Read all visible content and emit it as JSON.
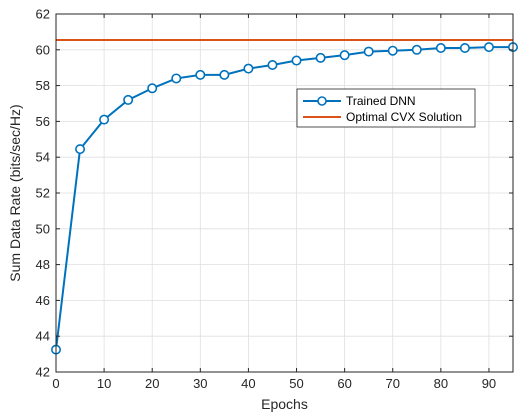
{
  "chart_data": {
    "type": "line",
    "title": "",
    "xlabel": "Epochs",
    "ylabel": "Sum Data Rate (bits/sec/Hz)",
    "xlim": [
      0,
      95
    ],
    "ylim": [
      42,
      62
    ],
    "xticks": [
      0,
      10,
      20,
      30,
      40,
      50,
      60,
      70,
      80,
      90
    ],
    "yticks": [
      42,
      44,
      46,
      48,
      50,
      52,
      54,
      56,
      58,
      60,
      62
    ],
    "grid": true,
    "legend_position": "upper-right-inset",
    "series": [
      {
        "name": "Trained DNN",
        "color": "#0072BD",
        "marker": "circle-open",
        "x": [
          0,
          5,
          10,
          15,
          20,
          25,
          30,
          35,
          40,
          45,
          50,
          55,
          60,
          65,
          70,
          75,
          80,
          85,
          90,
          95
        ],
        "y": [
          43.25,
          54.45,
          56.1,
          57.2,
          57.85,
          58.4,
          58.6,
          58.6,
          58.95,
          59.15,
          59.4,
          59.55,
          59.7,
          59.9,
          59.95,
          60.0,
          60.1,
          60.1,
          60.15,
          60.15
        ]
      },
      {
        "name": "Optimal CVX Solution",
        "color": "#D95319",
        "marker": "none",
        "x": [
          0,
          95
        ],
        "y": [
          60.55,
          60.55
        ]
      }
    ]
  }
}
